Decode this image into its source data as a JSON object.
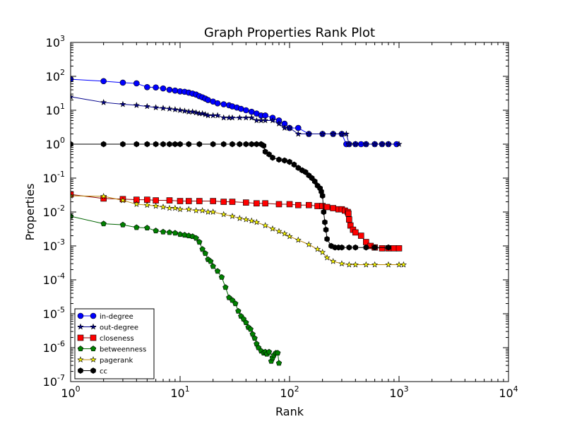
{
  "chart_data": {
    "type": "scatter",
    "title": "Graph Properties Rank Plot",
    "xlabel": "Rank",
    "ylabel": "Properties",
    "xscale": "log",
    "yscale": "log",
    "xlim": [
      1,
      10000
    ],
    "ylim": [
      1e-07,
      1000
    ],
    "x_ticks": [
      {
        "base": "10",
        "exp": "0"
      },
      {
        "base": "10",
        "exp": "1"
      },
      {
        "base": "10",
        "exp": "2"
      },
      {
        "base": "10",
        "exp": "3"
      },
      {
        "base": "10",
        "exp": "4"
      }
    ],
    "y_ticks": [
      {
        "base": "10",
        "exp": "-7"
      },
      {
        "base": "10",
        "exp": "-6"
      },
      {
        "base": "10",
        "exp": "-5"
      },
      {
        "base": "10",
        "exp": "-4"
      },
      {
        "base": "10",
        "exp": "-3"
      },
      {
        "base": "10",
        "exp": "-2"
      },
      {
        "base": "10",
        "exp": "-1"
      },
      {
        "base": "10",
        "exp": "0"
      },
      {
        "base": "10",
        "exp": "1"
      },
      {
        "base": "10",
        "exp": "2"
      },
      {
        "base": "10",
        "exp": "3"
      }
    ],
    "grid": false,
    "legend_position": "lower-left",
    "series": [
      {
        "name": "in-degree",
        "color": "#0000ff",
        "marker": "circle",
        "x": [
          1,
          2,
          3,
          4,
          5,
          6,
          7,
          8,
          9,
          10,
          11,
          12,
          13,
          14,
          15,
          16,
          17,
          18,
          20,
          22,
          25,
          28,
          30,
          33,
          36,
          40,
          45,
          50,
          55,
          60,
          70,
          80,
          90,
          100,
          120,
          150,
          200,
          250,
          300,
          330,
          350,
          400,
          450,
          500,
          600,
          700,
          800,
          950
        ],
        "y": [
          82,
          72,
          65,
          62,
          48,
          47,
          44,
          40,
          38,
          36,
          35,
          33,
          31,
          29,
          26,
          24,
          22,
          20,
          18,
          16,
          15,
          14,
          13,
          12,
          11,
          10,
          9,
          8,
          7,
          7,
          6,
          5,
          4,
          3,
          3,
          2,
          2,
          2,
          2,
          1,
          1,
          1,
          1,
          1,
          1,
          1,
          1,
          1
        ]
      },
      {
        "name": "out-degree",
        "color": "#00008b",
        "marker": "star",
        "x": [
          1,
          2,
          3,
          4,
          5,
          6,
          7,
          8,
          9,
          10,
          11,
          12,
          13,
          14,
          15,
          16,
          17,
          18,
          20,
          22,
          25,
          28,
          30,
          35,
          40,
          45,
          50,
          55,
          60,
          70,
          80,
          90,
          100,
          120,
          150,
          200,
          250,
          300,
          330,
          350,
          400,
          500,
          600,
          700,
          800,
          1000
        ],
        "y": [
          25,
          17,
          15,
          14,
          13,
          12,
          11.5,
          11,
          10.5,
          10,
          9.5,
          9,
          9,
          8.5,
          8,
          8,
          7.5,
          7,
          7,
          7,
          6,
          6,
          6,
          6,
          6,
          6,
          5,
          5,
          5,
          5,
          4,
          3,
          3,
          2,
          2,
          2,
          2,
          2,
          2,
          1,
          1,
          1,
          1,
          1,
          1,
          1
        ]
      },
      {
        "name": "closeness",
        "color": "#ff0000",
        "marker": "square",
        "x": [
          1,
          2,
          3,
          4,
          5,
          6,
          8,
          10,
          12,
          15,
          20,
          25,
          30,
          40,
          50,
          60,
          80,
          100,
          120,
          150,
          180,
          200,
          220,
          250,
          280,
          300,
          320,
          340,
          345,
          350,
          360,
          380,
          400,
          450,
          500,
          550,
          600,
          700,
          800,
          900,
          1000
        ],
        "y": [
          0.033,
          0.025,
          0.024,
          0.023,
          0.023,
          0.022,
          0.022,
          0.021,
          0.021,
          0.021,
          0.021,
          0.02,
          0.02,
          0.019,
          0.018,
          0.018,
          0.017,
          0.017,
          0.016,
          0.016,
          0.015,
          0.015,
          0.014,
          0.013,
          0.012,
          0.012,
          0.011,
          0.01,
          0.009,
          0.006,
          0.004,
          0.003,
          0.0025,
          0.002,
          0.0013,
          0.001,
          0.0009,
          0.00085,
          0.00085,
          0.00085,
          0.00085
        ]
      },
      {
        "name": "betweenness",
        "color": "#008000",
        "marker": "pentagon",
        "x": [
          1,
          2,
          3,
          4,
          5,
          6,
          7,
          8,
          9,
          10,
          11,
          12,
          13,
          14,
          15,
          16,
          17,
          18,
          19,
          20,
          22,
          24,
          26,
          28,
          30,
          32,
          34,
          36,
          38,
          40,
          42,
          44,
          46,
          48,
          50,
          52,
          55,
          58,
          60,
          62,
          65,
          68,
          70,
          72,
          75,
          78,
          80
        ],
        "y": [
          0.0075,
          0.0045,
          0.0042,
          0.0035,
          0.0034,
          0.0028,
          0.0026,
          0.0025,
          0.0024,
          0.0022,
          0.0021,
          0.002,
          0.0019,
          0.0017,
          0.0013,
          0.0008,
          0.0006,
          0.0004,
          0.00035,
          0.00025,
          0.00018,
          0.00012,
          6e-05,
          3e-05,
          2.5e-05,
          2e-05,
          1.2e-05,
          8.5e-06,
          7e-06,
          5.5e-06,
          4e-06,
          3.5e-06,
          2.5e-06,
          1.9e-06,
          1.3e-06,
          1e-06,
          8e-07,
          7e-07,
          7.5e-07,
          6.5e-07,
          7.5e-07,
          4e-07,
          5e-07,
          6e-07,
          7e-07,
          7e-07,
          3.5e-07
        ]
      },
      {
        "name": "pagerank",
        "color": "#ffff00",
        "marker": "star",
        "x": [
          1,
          2,
          3,
          4,
          5,
          6,
          7,
          8,
          9,
          10,
          12,
          14,
          16,
          18,
          20,
          25,
          30,
          35,
          40,
          45,
          50,
          60,
          70,
          80,
          90,
          100,
          120,
          150,
          180,
          200,
          220,
          250,
          300,
          350,
          400,
          500,
          600,
          800,
          1000,
          1100
        ],
        "y": [
          0.03,
          0.029,
          0.022,
          0.017,
          0.016,
          0.015,
          0.014,
          0.013,
          0.013,
          0.012,
          0.012,
          0.011,
          0.011,
          0.01,
          0.01,
          0.0085,
          0.0075,
          0.0065,
          0.006,
          0.0055,
          0.005,
          0.004,
          0.0032,
          0.0027,
          0.0023,
          0.0019,
          0.0015,
          0.0011,
          0.0008,
          0.00065,
          0.00045,
          0.00035,
          0.0003,
          0.00028,
          0.00028,
          0.00028,
          0.00028,
          0.00028,
          0.00028,
          0.00028
        ]
      },
      {
        "name": "cc",
        "color": "#000000",
        "marker": "hexagon",
        "x": [
          1,
          2,
          3,
          4,
          5,
          6,
          7,
          8,
          9,
          10,
          12,
          15,
          20,
          25,
          30,
          35,
          40,
          45,
          50,
          55,
          58,
          60,
          65,
          70,
          80,
          90,
          100,
          110,
          120,
          130,
          140,
          150,
          160,
          170,
          180,
          190,
          195,
          200,
          205,
          210,
          215,
          220,
          240,
          260,
          280,
          300,
          350,
          400,
          500,
          600,
          800
        ],
        "y": [
          1,
          1,
          1,
          1,
          1,
          1,
          1,
          1,
          1,
          1,
          1,
          1,
          1,
          1,
          1,
          1,
          1,
          1,
          1,
          1,
          0.9,
          0.6,
          0.5,
          0.4,
          0.35,
          0.33,
          0.3,
          0.25,
          0.2,
          0.17,
          0.15,
          0.12,
          0.1,
          0.08,
          0.06,
          0.05,
          0.04,
          0.03,
          0.01,
          0.005,
          0.003,
          0.0016,
          0.001,
          0.0009,
          0.0009,
          0.0009,
          0.0009,
          0.0009,
          0.0009,
          0.0009,
          0.0009
        ]
      }
    ]
  }
}
